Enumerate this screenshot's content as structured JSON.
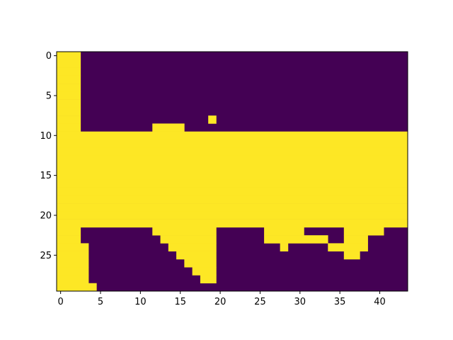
{
  "chart_data": {
    "type": "heatmap",
    "colormap": "viridis",
    "colors": {
      "low": "#440154",
      "high": "#fde725",
      "axis": "#000000",
      "background": "#ffffff"
    },
    "n_rows": 30,
    "n_cols": 44,
    "x_ticks": [
      0,
      5,
      10,
      15,
      20,
      25,
      30,
      35,
      40
    ],
    "y_ticks": [
      0,
      5,
      10,
      15,
      20,
      25
    ],
    "xlim": [
      -0.5,
      43.5
    ],
    "ylim": [
      29.5,
      -0.5
    ],
    "y_inverted": true,
    "grid": false,
    "rows": [
      [
        0,
        2
      ],
      [
        0,
        2
      ],
      [
        0,
        2
      ],
      [
        0,
        2
      ],
      [
        0,
        2
      ],
      [
        0,
        2
      ],
      [
        0,
        2
      ],
      [
        0,
        2
      ],
      [
        0,
        2,
        19,
        19
      ],
      [
        0,
        2,
        12,
        15
      ],
      [
        0,
        43
      ],
      [
        0,
        43
      ],
      [
        0,
        43
      ],
      [
        0,
        43
      ],
      [
        0,
        43
      ],
      [
        0,
        43
      ],
      [
        0,
        43
      ],
      [
        0,
        43
      ],
      [
        0,
        43
      ],
      [
        0,
        43
      ],
      [
        0,
        43
      ],
      [
        0,
        43
      ],
      [
        0,
        2,
        12,
        19,
        26,
        30,
        36,
        40
      ],
      [
        0,
        2,
        13,
        19,
        26,
        30,
        31,
        33,
        36,
        38
      ],
      [
        0,
        3,
        14,
        19,
        28,
        28,
        34,
        38
      ],
      [
        0,
        3,
        15,
        19,
        36,
        37
      ],
      [
        0,
        3,
        16,
        19
      ],
      [
        0,
        3,
        17,
        19
      ],
      [
        0,
        3,
        18,
        19
      ],
      [
        0,
        4
      ]
    ]
  }
}
